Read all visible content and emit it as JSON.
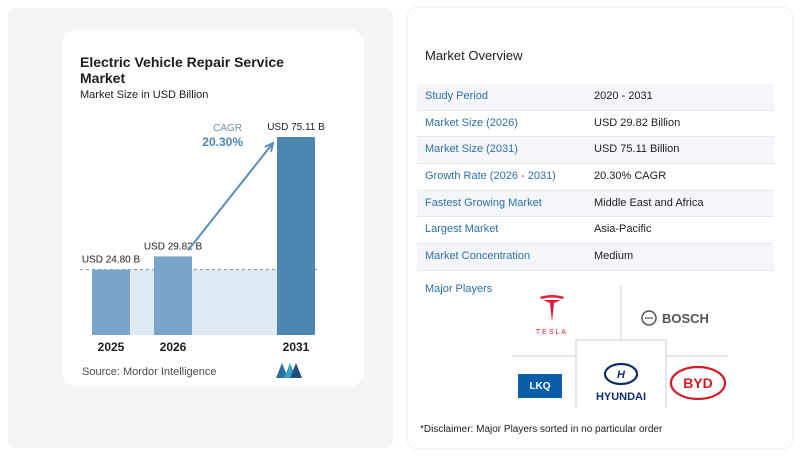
{
  "chart_data": {
    "type": "bar",
    "title": "Electric Vehicle Repair Service Market",
    "subtitle": "Market Size in USD Billion",
    "categories": [
      "2025",
      "2026",
      "2031"
    ],
    "values": [
      24.8,
      29.82,
      75.11
    ],
    "data_labels": [
      "USD 24.80 B",
      "USD 29.82 B",
      "USD 75.11 B"
    ],
    "cagr_label": "CAGR",
    "cagr_value": "20.30%",
    "ylim": [
      0,
      80
    ]
  },
  "source": "Source:  Mordor Intelligence",
  "overview": {
    "title": "Market Overview",
    "rows": [
      {
        "label": "Study Period",
        "value": "2020 - 2031"
      },
      {
        "label": "Market Size (2026)",
        "value": "USD 29.82 Billion"
      },
      {
        "label": "Market Size (2031)",
        "value": "USD 75.11 Billion"
      },
      {
        "label": "Growth Rate (2026 - 2031)",
        "value": "20.30% CAGR"
      },
      {
        "label": "Fastest Growing Market",
        "value": "Middle East and Africa"
      },
      {
        "label": "Largest Market",
        "value": "Asia-Pacific"
      },
      {
        "label": "Market Concentration",
        "value": "Medium"
      }
    ]
  },
  "players": {
    "label": "Major Players",
    "logos": [
      "TESLA",
      "BOSCH",
      "LKQ",
      "HYUNDAI",
      "BYD"
    ]
  },
  "disclaimer": "*Disclaimer: Major Players sorted in no particular order",
  "colors": {
    "bar_light": "#7aa4c9",
    "bar_dark": "#4e86b2",
    "accent": "#2d6fa3",
    "band": "#dfe9f2"
  }
}
